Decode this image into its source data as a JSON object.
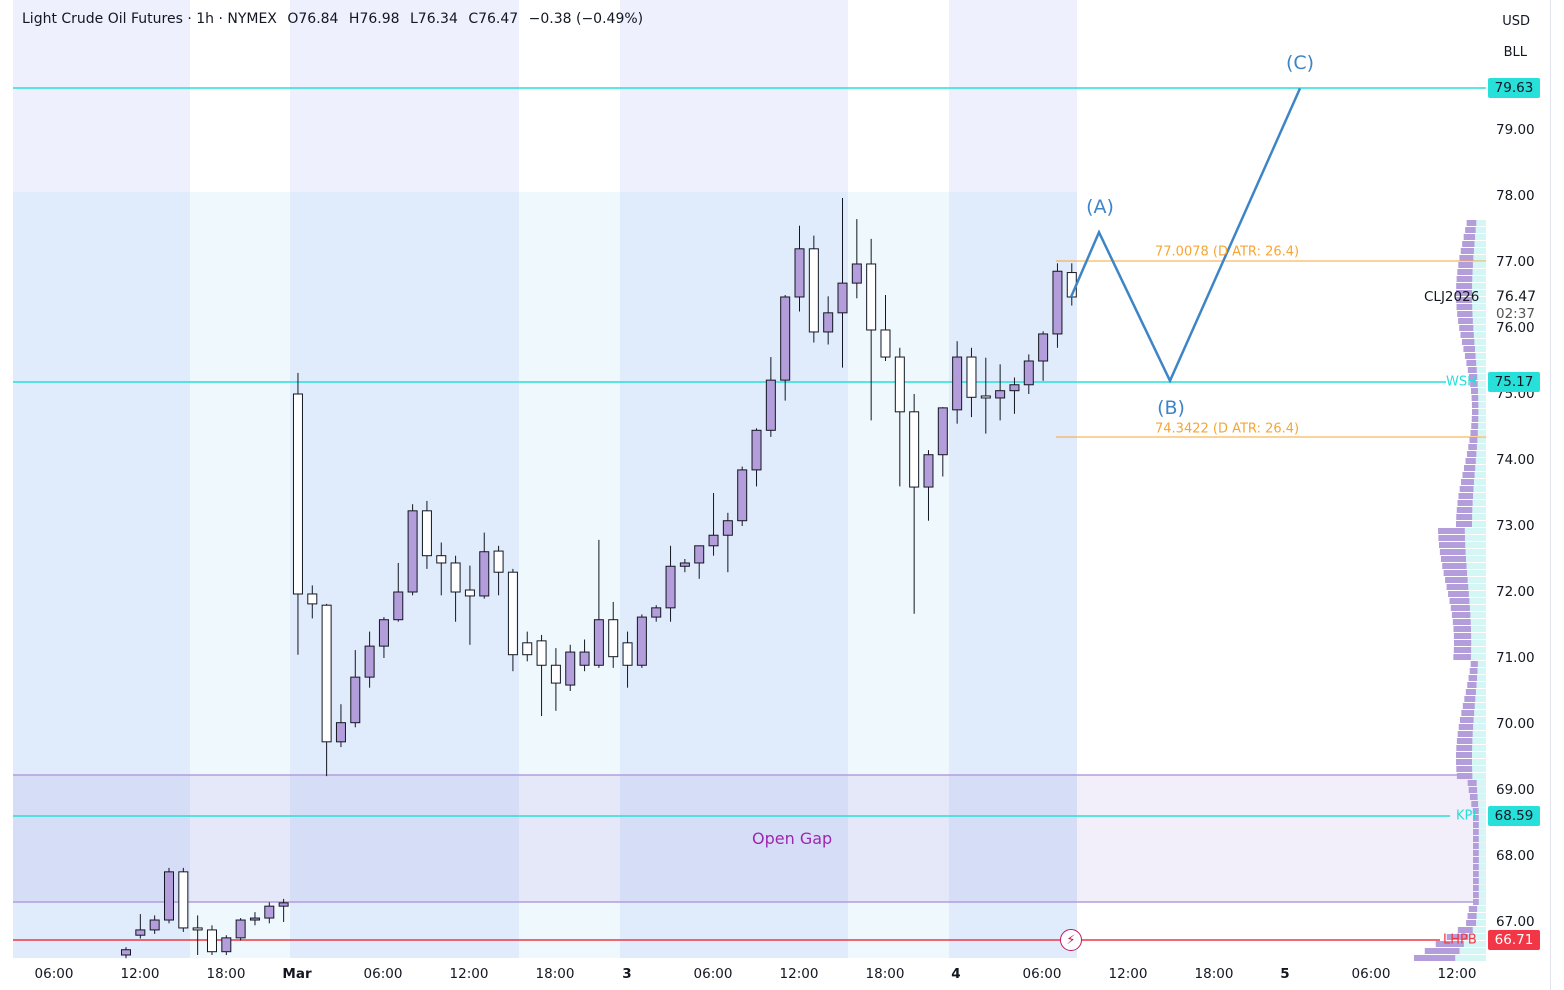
{
  "legend": {
    "symbol": "Light Crude Oil Futures · 1h · NYMEX",
    "open": "O76.84",
    "high": "H76.98",
    "low": "L76.34",
    "close": "C76.47",
    "change": "−0.38 (−0.49%)"
  },
  "currency": "USD",
  "unit": "BLL",
  "price_axis": [
    "79.00",
    "78.00",
    "77.00",
    "76.00",
    "75.00",
    "74.00",
    "73.00",
    "72.00",
    "71.00",
    "70.00",
    "69.00",
    "68.00",
    "67.00"
  ],
  "time_axis": [
    "06:00",
    "12:00",
    "18:00",
    "Mar",
    "06:00",
    "12:00",
    "18:00",
    "3",
    "06:00",
    "12:00",
    "18:00",
    "4",
    "06:00",
    "12:00",
    "18:00",
    "5",
    "06:00",
    "12:00"
  ],
  "current": {
    "ticker": "CLJ2026",
    "price": "76.47",
    "countdown": "02:37"
  },
  "levels": [
    {
      "name": "",
      "price": "79.63",
      "color": "#26e0d9"
    },
    {
      "name": "WSH",
      "price": "75.17",
      "color": "#26e0d9"
    },
    {
      "name": "KPI",
      "price": "68.59",
      "color": "#26e0d9"
    },
    {
      "name": "LHPB",
      "price": "66.71",
      "color": "#f23645"
    }
  ],
  "fib": [
    "77.0078 (D ATR: 26.4)",
    "74.3422 (D ATR: 26.4)"
  ],
  "waves": [
    "(A)",
    "(B)",
    "(C)"
  ],
  "gap_label": "Open Gap",
  "colors": {
    "up": "#b39ddb",
    "down": "#ffffff",
    "outline": "#131722",
    "wave": "#3d85c6",
    "cyan": "#26e0d9",
    "red": "#f23645",
    "fib": "#f7a534"
  },
  "chart_data": {
    "type": "candlestick",
    "interval": "1h",
    "ohlc": [
      [
        66.5,
        66.62,
        66.45,
        66.58
      ],
      [
        66.8,
        67.12,
        66.75,
        66.88
      ],
      [
        66.88,
        67.1,
        66.82,
        67.03
      ],
      [
        67.03,
        67.82,
        66.98,
        67.76
      ],
      [
        67.76,
        67.82,
        66.85,
        66.91
      ],
      [
        66.91,
        67.1,
        66.5,
        66.88
      ],
      [
        66.88,
        66.95,
        66.5,
        66.55
      ],
      [
        66.55,
        66.8,
        66.5,
        66.76
      ],
      [
        66.76,
        67.06,
        66.72,
        67.03
      ],
      [
        67.03,
        67.15,
        66.95,
        67.06
      ],
      [
        67.06,
        67.3,
        66.98,
        67.24
      ],
      [
        67.24,
        67.35,
        67.0,
        67.29
      ],
      [
        75.0,
        75.32,
        71.05,
        71.97
      ],
      [
        71.97,
        72.1,
        71.6,
        71.82
      ],
      [
        71.8,
        71.82,
        69.21,
        69.73
      ],
      [
        69.73,
        70.3,
        69.65,
        70.02
      ],
      [
        70.02,
        71.12,
        69.95,
        70.71
      ],
      [
        70.71,
        71.4,
        70.55,
        71.18
      ],
      [
        71.18,
        71.62,
        71.0,
        71.58
      ],
      [
        71.58,
        72.44,
        71.55,
        72.0
      ],
      [
        72.0,
        73.33,
        71.95,
        73.23
      ],
      [
        73.23,
        73.38,
        72.35,
        72.55
      ],
      [
        72.55,
        72.75,
        71.95,
        72.44
      ],
      [
        72.44,
        72.55,
        71.55,
        72.0
      ],
      [
        72.03,
        72.4,
        71.2,
        71.94
      ],
      [
        71.94,
        72.9,
        71.9,
        72.61
      ],
      [
        72.62,
        72.7,
        71.95,
        72.3
      ],
      [
        72.3,
        72.35,
        70.8,
        71.05
      ],
      [
        71.23,
        71.4,
        70.95,
        71.05
      ],
      [
        71.26,
        71.35,
        70.12,
        70.89
      ],
      [
        70.89,
        71.15,
        70.2,
        70.62
      ],
      [
        70.59,
        71.2,
        70.5,
        71.09
      ],
      [
        70.89,
        71.28,
        70.8,
        71.09
      ],
      [
        70.89,
        72.79,
        70.85,
        71.58
      ],
      [
        71.58,
        71.85,
        70.85,
        71.02
      ],
      [
        71.23,
        71.4,
        70.55,
        70.89
      ],
      [
        70.89,
        71.66,
        70.85,
        71.62
      ],
      [
        71.62,
        71.8,
        71.55,
        71.76
      ],
      [
        71.76,
        72.7,
        71.55,
        72.39
      ],
      [
        72.39,
        72.5,
        72.3,
        72.44
      ],
      [
        72.44,
        72.7,
        72.2,
        72.7
      ],
      [
        72.7,
        73.5,
        72.55,
        72.86
      ],
      [
        72.86,
        73.2,
        72.3,
        73.08
      ],
      [
        73.08,
        73.9,
        73.0,
        73.85
      ],
      [
        73.85,
        74.48,
        73.6,
        74.45
      ],
      [
        74.45,
        75.56,
        74.35,
        75.21
      ],
      [
        75.21,
        76.5,
        74.9,
        76.47
      ],
      [
        76.47,
        77.55,
        76.25,
        77.2
      ],
      [
        77.2,
        77.4,
        75.78,
        75.94
      ],
      [
        75.94,
        76.48,
        75.75,
        76.23
      ],
      [
        76.23,
        77.97,
        75.4,
        76.68
      ],
      [
        76.68,
        77.65,
        76.45,
        76.97
      ],
      [
        76.97,
        77.35,
        74.6,
        75.97
      ],
      [
        75.97,
        76.5,
        75.5,
        75.56
      ],
      [
        75.56,
        75.7,
        73.6,
        74.73
      ],
      [
        74.73,
        75.0,
        71.67,
        73.59
      ],
      [
        73.59,
        74.15,
        73.08,
        74.08
      ],
      [
        74.08,
        74.8,
        73.75,
        74.79
      ],
      [
        74.76,
        75.8,
        74.55,
        75.56
      ],
      [
        75.56,
        75.7,
        74.65,
        74.95
      ],
      [
        74.97,
        75.55,
        74.4,
        74.94
      ],
      [
        74.94,
        75.45,
        74.6,
        75.05
      ],
      [
        75.05,
        75.25,
        74.7,
        75.14
      ],
      [
        75.14,
        75.6,
        75.0,
        75.5
      ],
      [
        75.5,
        75.95,
        75.2,
        75.91
      ],
      [
        75.91,
        76.98,
        75.7,
        76.86
      ],
      [
        76.84,
        76.98,
        76.34,
        76.47
      ]
    ],
    "price_range": [
      66.4,
      80.95
    ],
    "wave_points": [
      76.47,
      77.45,
      75.2,
      79.63
    ]
  }
}
